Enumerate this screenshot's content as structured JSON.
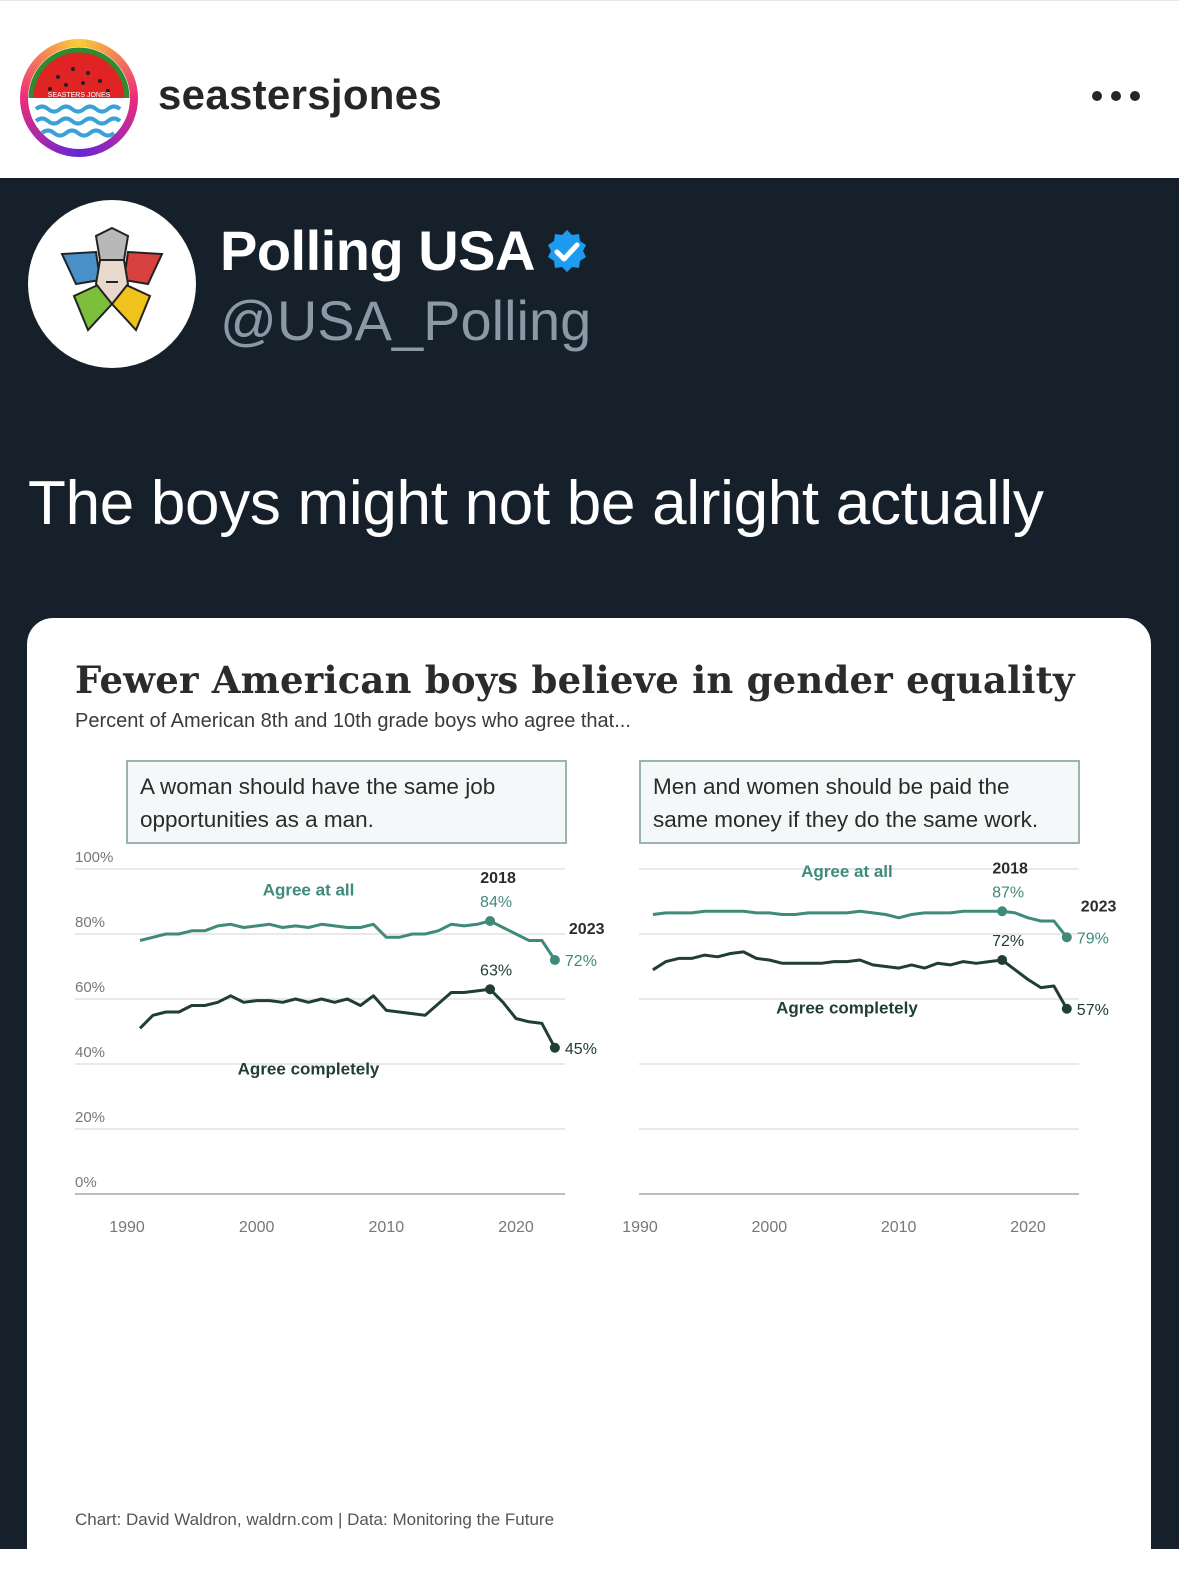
{
  "instagram": {
    "username": "seastersjones",
    "avatar_text": "SEASTERS JONES"
  },
  "tweet": {
    "display_name": "Polling USA",
    "handle": "@USA_Polling",
    "text": "The boys might not be alright actually",
    "verified": true
  },
  "colors": {
    "tweet_bg": "#15202b",
    "agree_at_all": "#3f8a7a",
    "agree_completely": "#203d36",
    "verified": "#1d9bf0"
  },
  "chart_data": {
    "type": "line",
    "title": "Fewer American boys believe in gender equality",
    "subtitle": "Percent of American 8th and 10th grade boys who agree that...",
    "footer": "Chart: David Waldron, waldrn.com | Data: Monitoring the Future",
    "y_ticks": [
      "100%",
      "80%",
      "60%",
      "40%",
      "20%",
      "0%"
    ],
    "ylim": [
      0,
      100
    ],
    "xlim": [
      1990,
      2023
    ],
    "x_ticks": [
      "1990",
      "2000",
      "2010",
      "2020"
    ],
    "panels": [
      {
        "question": "A woman should have the same job opportunities as a man.",
        "years": [
          1991,
          1992,
          1993,
          1994,
          1995,
          1996,
          1997,
          1998,
          1999,
          2000,
          2001,
          2002,
          2003,
          2004,
          2005,
          2006,
          2007,
          2008,
          2009,
          2010,
          2011,
          2012,
          2013,
          2014,
          2015,
          2016,
          2017,
          2018,
          2019,
          2020,
          2021,
          2022,
          2023
        ],
        "series": [
          {
            "name": "Agree at all",
            "values": [
              78,
              79,
              80,
              80,
              81,
              81,
              82.5,
              83,
              82,
              82.5,
              83,
              82,
              82.5,
              82,
              83,
              82.5,
              82,
              82,
              83,
              79,
              79,
              80,
              80,
              81,
              83,
              82.5,
              83,
              84,
              82,
              80,
              78,
              78,
              72
            ],
            "annotations": [
              {
                "year": 2018,
                "year_label": "2018",
                "value_label": "84%"
              },
              {
                "year": 2023,
                "year_label": "2023",
                "value_label": "72%"
              }
            ]
          },
          {
            "name": "Agree completely",
            "values": [
              51,
              55,
              56,
              56,
              58,
              58,
              59,
              61,
              59,
              59.5,
              59.5,
              59,
              60,
              59,
              60,
              59,
              60,
              58,
              61,
              56.5,
              56,
              55.5,
              55,
              58.5,
              62,
              62,
              62.5,
              63,
              59,
              54,
              53,
              52.5,
              45
            ],
            "annotations": [
              {
                "year": 2018,
                "year_label": "",
                "value_label": "63%"
              },
              {
                "year": 2023,
                "year_label": "",
                "value_label": "45%"
              }
            ]
          }
        ]
      },
      {
        "question": "Men and women should be paid the same money if they do the same work.",
        "years": [
          1991,
          1992,
          1993,
          1994,
          1995,
          1996,
          1997,
          1998,
          1999,
          2000,
          2001,
          2002,
          2003,
          2004,
          2005,
          2006,
          2007,
          2008,
          2009,
          2010,
          2011,
          2012,
          2013,
          2014,
          2015,
          2016,
          2017,
          2018,
          2019,
          2020,
          2021,
          2022,
          2023
        ],
        "series": [
          {
            "name": "Agree at all",
            "values": [
              86,
              86.5,
              86.5,
              86.5,
              87,
              87,
              87,
              87,
              86.5,
              86.5,
              86,
              86,
              86.5,
              86.5,
              86.5,
              86.5,
              87,
              86.5,
              86,
              85,
              86,
              86.5,
              86.5,
              86.5,
              87,
              87,
              87,
              87,
              86.5,
              85,
              84,
              84,
              79
            ],
            "annotations": [
              {
                "year": 2018,
                "year_label": "2018",
                "value_label": "87%"
              },
              {
                "year": 2023,
                "year_label": "2023",
                "value_label": "79%"
              }
            ]
          },
          {
            "name": "Agree completely",
            "values": [
              69,
              71.5,
              72.5,
              72.5,
              73.5,
              73,
              74,
              74.5,
              72.5,
              72,
              71,
              71,
              71,
              71,
              71.5,
              71.5,
              72,
              70.5,
              70,
              69.5,
              70.5,
              69.5,
              71,
              70.5,
              71.5,
              71,
              71.5,
              72,
              69,
              66,
              63.5,
              64,
              57
            ],
            "annotations": [
              {
                "year": 2018,
                "year_label": "",
                "value_label": "72%"
              },
              {
                "year": 2023,
                "year_label": "",
                "value_label": "57%"
              }
            ]
          }
        ]
      }
    ]
  }
}
